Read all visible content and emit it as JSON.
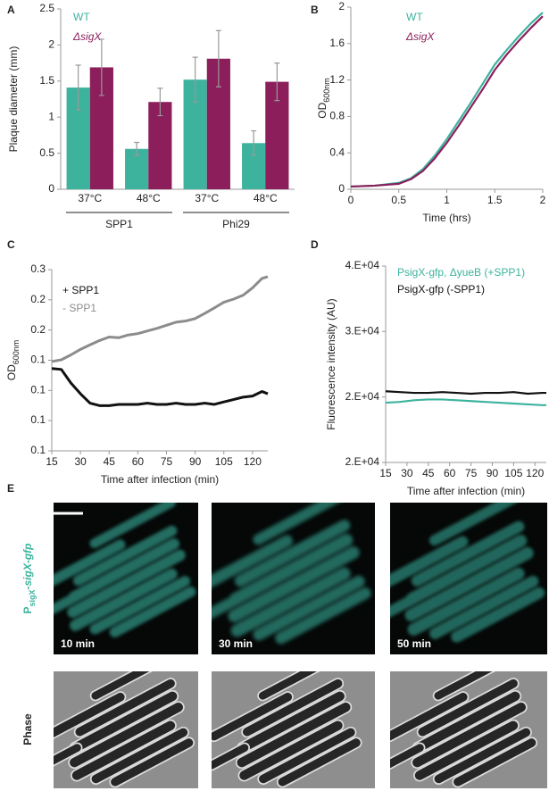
{
  "chart_data": [
    {
      "panel": "A",
      "type": "bar",
      "y_label": "Plaque diameter (mm)",
      "categories": [
        "37°C",
        "48°C",
        "37°C",
        "48°C"
      ],
      "groups": [
        "SPP1",
        "Phi29"
      ],
      "series": [
        {
          "name": "WT",
          "color": "#3db39e",
          "values": [
            1.41,
            0.56,
            1.52,
            0.64
          ],
          "errors": [
            0.31,
            0.09,
            0.31,
            0.17
          ]
        },
        {
          "name": "ΔsigX",
          "color": "#8b1e5b",
          "font_style": "italic",
          "values": [
            1.69,
            1.21,
            1.81,
            1.49
          ],
          "errors": [
            0.39,
            0.19,
            0.39,
            0.26
          ]
        }
      ],
      "ylim": [
        0,
        2.5
      ],
      "yticks": [
        0,
        0.5,
        1,
        1.5,
        2,
        2.5
      ]
    },
    {
      "panel": "B",
      "type": "line",
      "y_label": "OD",
      "y_label_sub": "600nm",
      "x_label": "Time (hrs)",
      "x": [
        0,
        0.25,
        0.5,
        0.625,
        0.75,
        0.875,
        1,
        1.125,
        1.25,
        1.375,
        1.5,
        1.625,
        1.75,
        1.875,
        2
      ],
      "series": [
        {
          "name": "WT",
          "color": "#3db39e",
          "values": [
            0.03,
            0.04,
            0.07,
            0.12,
            0.22,
            0.37,
            0.55,
            0.75,
            0.95,
            1.16,
            1.37,
            1.53,
            1.68,
            1.82,
            1.94
          ]
        },
        {
          "name": "ΔsigX",
          "color": "#8b1e5b",
          "font_style": "italic",
          "values": [
            0.03,
            0.04,
            0.06,
            0.11,
            0.2,
            0.34,
            0.51,
            0.7,
            0.9,
            1.1,
            1.31,
            1.48,
            1.63,
            1.77,
            1.9
          ]
        }
      ],
      "xlim": [
        0,
        2
      ],
      "xticks": [
        0,
        0.5,
        1,
        1.5,
        2
      ],
      "ylim": [
        0,
        2
      ],
      "yticks": [
        0,
        0.4,
        0.8,
        1.2,
        1.6,
        2
      ]
    },
    {
      "panel": "C",
      "type": "line",
      "log_y": true,
      "y_label": "OD",
      "y_label_sub": "600nm",
      "x_label": "Time after infection (min)",
      "x": [
        15,
        20,
        25,
        30,
        35,
        40,
        45,
        50,
        55,
        60,
        65,
        70,
        75,
        80,
        85,
        90,
        95,
        100,
        105,
        110,
        115,
        120,
        125,
        128
      ],
      "series": [
        {
          "name": "+ SPP1",
          "color": "#111111",
          "values": [
            0.127,
            0.126,
            0.112,
            0.102,
            0.094,
            0.092,
            0.092,
            0.093,
            0.093,
            0.093,
            0.094,
            0.093,
            0.093,
            0.094,
            0.093,
            0.093,
            0.094,
            0.093,
            0.095,
            0.097,
            0.099,
            0.1,
            0.104,
            0.102
          ]
        },
        {
          "name": "- SPP1",
          "color": "#8c8c8c",
          "values": [
            0.135,
            0.137,
            0.143,
            0.15,
            0.156,
            0.162,
            0.167,
            0.166,
            0.17,
            0.172,
            0.176,
            0.18,
            0.185,
            0.19,
            0.192,
            0.196,
            0.205,
            0.215,
            0.226,
            0.232,
            0.24,
            0.256,
            0.278,
            0.282
          ]
        }
      ],
      "xlim": [
        15,
        128
      ],
      "xticks": [
        15,
        30,
        45,
        60,
        75,
        90,
        105,
        120
      ],
      "ylim": [
        0.0621,
        0.3
      ],
      "yticks": [
        {
          "value": 0.0621,
          "label": "0.1"
        },
        {
          "value": 0.0808,
          "label": "0.1"
        },
        {
          "value": 0.105,
          "label": "0.1"
        },
        {
          "value": 0.1365,
          "label": "0.1"
        },
        {
          "value": 0.1775,
          "label": "0.2"
        },
        {
          "value": 0.2308,
          "label": "0.2"
        },
        0.3
      ]
    },
    {
      "panel": "D",
      "type": "line",
      "y_label": "Fluorescence intensity (AU)",
      "x_label": "Time after infection (min)",
      "x": [
        15,
        25,
        35,
        45,
        55,
        65,
        75,
        85,
        95,
        105,
        115,
        125,
        128
      ],
      "series": [
        {
          "name": "PsigX-gfp, ΔyueB (+SPP1)",
          "color": "#3db39e",
          "values": [
            23300,
            23400,
            23600,
            23700,
            23700,
            23600,
            23500,
            23400,
            23300,
            23200,
            23100,
            23000,
            23000
          ]
        },
        {
          "name": "PsigX-gfp (-SPP1)",
          "color": "#111111",
          "values": [
            24700,
            24600,
            24500,
            24500,
            24600,
            24500,
            24400,
            24500,
            24500,
            24600,
            24400,
            24500,
            24500
          ]
        }
      ],
      "xlim": [
        15,
        128
      ],
      "xticks": [
        15,
        30,
        45,
        60,
        75,
        90,
        105,
        120
      ],
      "ylim": [
        16000,
        40000
      ],
      "yticks": [
        {
          "value": 16000,
          "label": "2.E+04"
        },
        {
          "value": 24000,
          "label": "2.E+04"
        },
        {
          "value": 32000,
          "label": "3.E+04"
        },
        {
          "value": 40000,
          "label": "4.E+04"
        }
      ]
    }
  ],
  "panel_e": {
    "panel": "E",
    "fluor_label": {
      "p": "P",
      "sub": "sigX",
      "gene": "-sigX-gfp"
    },
    "phase_label": "Phase",
    "times": [
      "10 min",
      "30 min",
      "50 min"
    ]
  }
}
